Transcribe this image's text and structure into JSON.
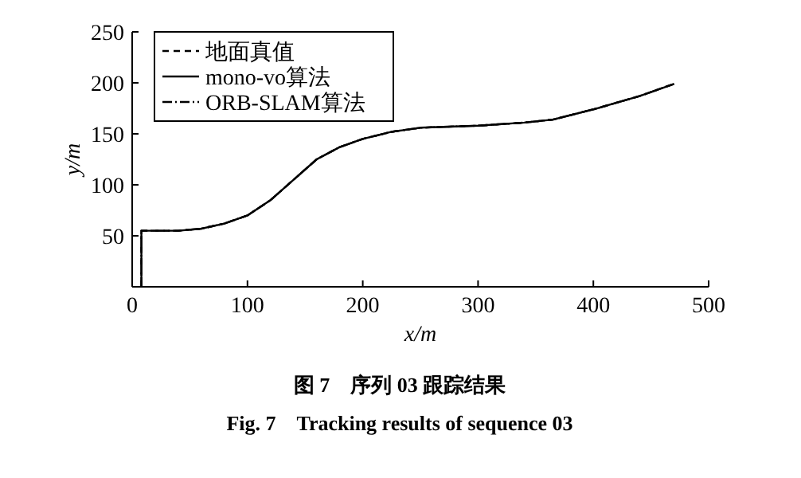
{
  "chart_data": {
    "type": "line",
    "xlabel": "x/m",
    "ylabel": "y/m",
    "xlim": [
      0,
      500
    ],
    "ylim": [
      0,
      250
    ],
    "xticks": [
      0,
      100,
      200,
      300,
      400,
      500
    ],
    "yticks": [
      {
        "value": 0,
        "label": null
      },
      50,
      100,
      150,
      200,
      250
    ],
    "legend": "top left",
    "marker": "none",
    "x": [
      8,
      8,
      20,
      40,
      60,
      80,
      100,
      120,
      140,
      160,
      180,
      200,
      225,
      250,
      300,
      340,
      365,
      400,
      440,
      470
    ],
    "series": [
      {
        "name": "地面真值",
        "color": "#000000",
        "line_style": "dashed",
        "values": [
          0,
          55,
          55,
          55,
          57,
          62,
          70,
          85,
          105,
          125,
          137,
          145,
          152,
          156,
          158,
          161,
          164,
          174,
          187,
          199
        ]
      },
      {
        "name": "mono-vo算法",
        "color": "#000000",
        "line_style": "solid",
        "values": [
          0,
          55,
          55,
          55,
          57,
          62,
          70,
          85,
          105,
          125,
          137,
          145,
          152,
          156,
          158,
          161,
          164,
          174,
          187,
          199
        ]
      },
      {
        "name": "ORB-SLAM算法",
        "color": "#000000",
        "line_style": "dashdot",
        "values": [
          0,
          55,
          55,
          55,
          57,
          62,
          70,
          85,
          105,
          125,
          137,
          145,
          152,
          156,
          158,
          161,
          164,
          174,
          187,
          199
        ]
      }
    ],
    "annotations": [
      "图 7　序列 03 跟踪结果",
      "Fig. 7　Tracking results of sequence 03"
    ]
  }
}
